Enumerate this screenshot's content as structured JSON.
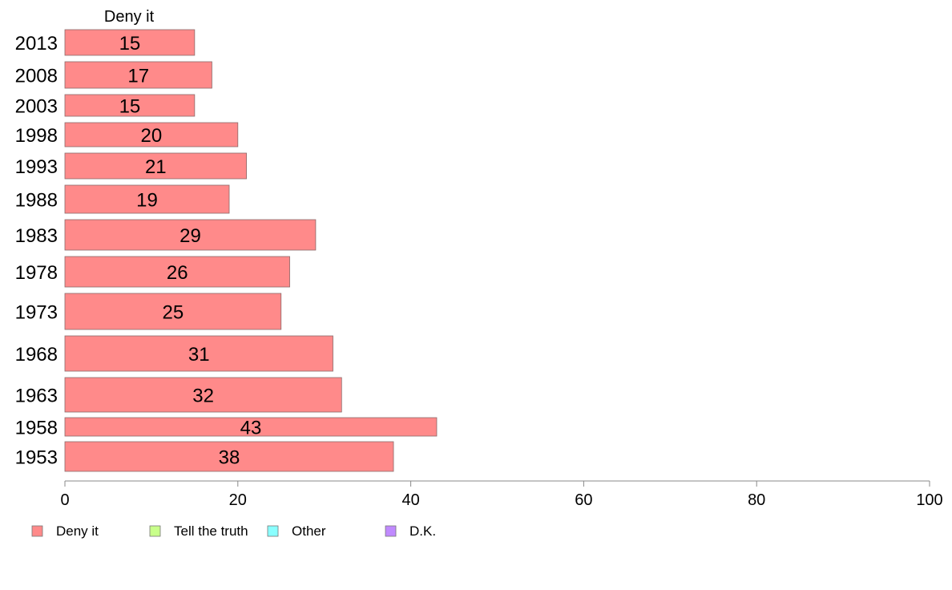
{
  "chart_data": {
    "type": "bar",
    "orientation": "horizontal",
    "panel_title": "Deny it",
    "categories": [
      "2013",
      "2008",
      "2003",
      "1998",
      "1993",
      "1988",
      "1983",
      "1978",
      "1973",
      "1968",
      "1963",
      "1958",
      "1953"
    ],
    "series": [
      {
        "name": "Deny it",
        "values": [
          15,
          17,
          15,
          20,
          21,
          19,
          29,
          26,
          25,
          31,
          32,
          43,
          38
        ],
        "color": "#ff8a8a"
      }
    ],
    "value_labels": [
      "15",
      "17",
      "15",
      "20",
      "21",
      "19",
      "29",
      "26",
      "25",
      "31",
      "32",
      "43",
      "38"
    ],
    "xlim": [
      0,
      100
    ],
    "x_ticks": [
      0,
      20,
      40,
      60,
      80,
      100
    ],
    "x_tick_labels": [
      "0",
      "20",
      "40",
      "60",
      "80",
      "100"
    ],
    "grid": false,
    "legend": {
      "placement": "bottom-left",
      "items": [
        {
          "label": "Deny it",
          "color": "#ff8a8a"
        },
        {
          "label": "Tell the truth",
          "color": "#c8ff8a"
        },
        {
          "label": "Other",
          "color": "#8affff"
        },
        {
          "label": "D.K.",
          "color": "#c08aff"
        }
      ]
    }
  }
}
